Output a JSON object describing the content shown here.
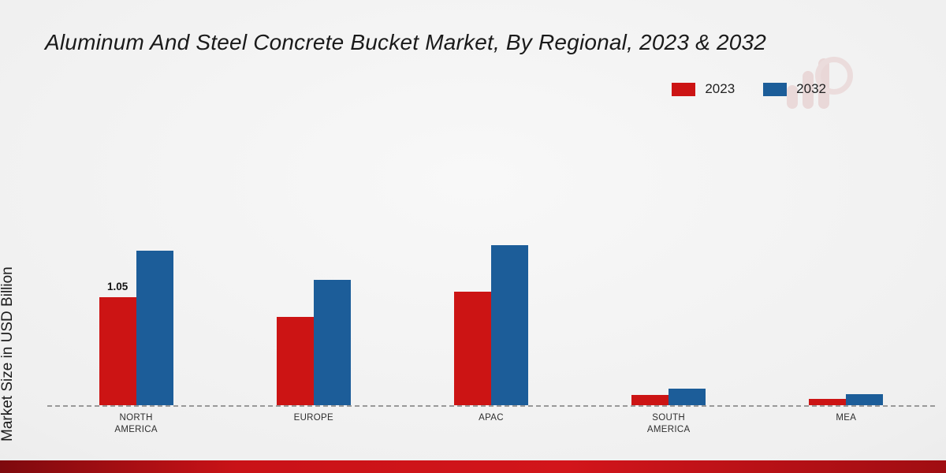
{
  "chart_data": {
    "type": "bar",
    "title": "Aluminum And Steel Concrete Bucket Market, By Regional, 2023 & 2032",
    "ylabel": "Market Size in USD Billion",
    "categories": [
      "NORTH AMERICA",
      "EUROPE",
      "APAC",
      "SOUTH AMERICA",
      "MEA"
    ],
    "series": [
      {
        "name": "2023",
        "color": "#cc1414",
        "values": [
          1.05,
          0.86,
          1.11,
          0.1,
          0.06
        ]
      },
      {
        "name": "2032",
        "color": "#1c5d99",
        "values": [
          1.51,
          1.22,
          1.56,
          0.16,
          0.11
        ]
      }
    ],
    "annotations": [
      {
        "category_index": 0,
        "series_index": 0,
        "text": "1.05"
      }
    ],
    "ylim": [
      0,
      2.2
    ],
    "grid": false,
    "legend_position": "top-right",
    "baseline_style": "dashed"
  },
  "footer": {
    "accent_color": "#c91217"
  }
}
